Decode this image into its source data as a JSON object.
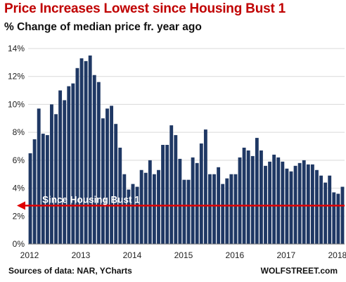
{
  "chart_data": {
    "type": "bar",
    "title": "Price Increases Lowest since Housing Bust 1",
    "subtitle": "% Change of median price fr. year ago",
    "ylim": [
      0,
      14
    ],
    "yticks": [
      0,
      2,
      4,
      6,
      8,
      10,
      12,
      14
    ],
    "ytick_labels": [
      "0%",
      "2%",
      "4%",
      "6%",
      "8%",
      "10%",
      "12%",
      "14%"
    ],
    "xtick_labels": [
      "2012",
      "2013",
      "2014",
      "2015",
      "2016",
      "2017",
      "2018"
    ],
    "grid": true,
    "bar_color": "#1f3864",
    "series": [
      {
        "values": [
          6.5,
          7.5,
          9.7,
          7.9,
          7.8,
          10.0,
          9.3,
          11.0,
          10.3,
          11.3,
          11.5,
          12.6,
          13.3,
          13.1,
          13.5,
          12.1,
          11.6,
          9.0,
          9.7,
          9.9,
          8.6,
          6.9,
          5.0,
          3.9,
          4.3,
          4.1,
          5.3,
          5.1,
          6.0,
          5.0,
          5.3,
          7.1,
          7.1,
          8.5,
          7.8,
          6.1,
          4.6,
          4.6,
          6.2,
          5.8,
          7.2,
          8.2,
          5.0,
          5.0,
          5.5,
          4.3,
          4.7,
          5.0,
          5.0,
          6.2,
          6.9,
          6.7,
          6.3,
          7.6,
          6.7,
          5.6,
          5.9,
          6.4,
          6.2,
          5.9,
          5.4,
          5.2,
          5.6,
          5.8,
          6.0,
          5.7,
          5.7,
          5.3,
          4.9,
          4.4,
          4.9,
          3.7,
          3.6,
          4.1
        ]
      }
    ],
    "reference_line": {
      "value": 2.75,
      "label": "Since Housing Bust 1",
      "color": "#e00000"
    },
    "source": "Sources of data: NAR, YCharts",
    "brand": "WOLFSTREET.com"
  }
}
